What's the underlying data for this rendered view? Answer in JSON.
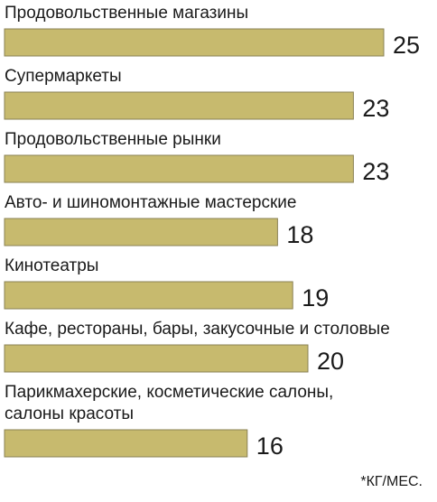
{
  "chart_data": {
    "type": "bar",
    "orientation": "horizontal",
    "categories": [
      [
        "Продовольственные магазины"
      ],
      [
        "Супермаркеты"
      ],
      [
        "Продовольственные рынки"
      ],
      [
        "Авто- и шиномонтажные мастерские"
      ],
      [
        "Кинотеатры"
      ],
      [
        "Кафе, рестораны, бары, закусочные и столовые"
      ],
      [
        "Парикмахерские, косметические салоны,",
        "салоны красоты"
      ]
    ],
    "values": [
      25,
      23,
      23,
      18,
      19,
      20,
      16
    ],
    "unit_note": "*КГ/МЕС.",
    "xlim": [
      0,
      25
    ],
    "grid": false,
    "legend": false,
    "bar_color": "#c7ba6e",
    "bar_border_color": "#8a8154"
  }
}
